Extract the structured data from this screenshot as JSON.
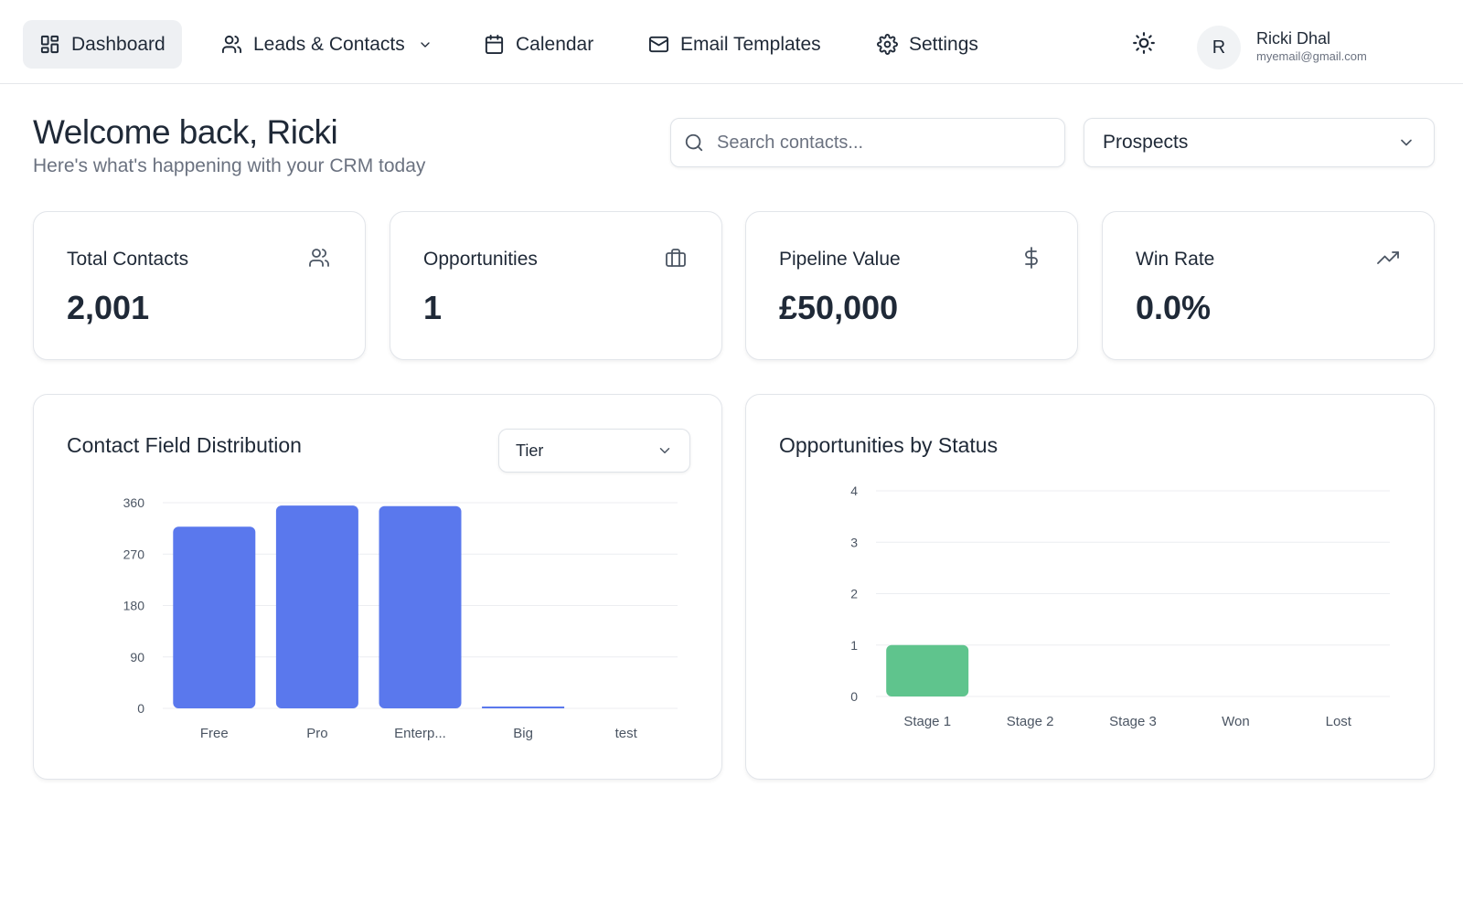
{
  "nav": {
    "items": [
      {
        "label": "Dashboard",
        "icon": "dashboard-icon",
        "active": true
      },
      {
        "label": "Leads & Contacts",
        "icon": "users-icon",
        "dropdown": true
      },
      {
        "label": "Calendar",
        "icon": "calendar-icon"
      },
      {
        "label": "Email Templates",
        "icon": "mail-icon"
      },
      {
        "label": "Settings",
        "icon": "gear-icon"
      }
    ],
    "theme_icon": "sun-icon",
    "user": {
      "initial": "R",
      "name": "Ricki Dhal",
      "email": "myemail@gmail.com"
    }
  },
  "header": {
    "title": "Welcome back, Ricki",
    "subtitle": "Here's what's happening with your CRM today",
    "search_placeholder": "Search contacts...",
    "filter_value": "Prospects"
  },
  "stats": [
    {
      "label": "Total Contacts",
      "value": "2,001",
      "icon": "users-icon"
    },
    {
      "label": "Opportunities",
      "value": "1",
      "icon": "briefcase-icon"
    },
    {
      "label": "Pipeline Value",
      "value": "£50,000",
      "icon": "dollar-icon"
    },
    {
      "label": "Win Rate",
      "value": "0.0%",
      "icon": "trending-up-icon"
    }
  ],
  "colors": {
    "bar_blue": "#5a78ed",
    "bar_green": "#5fc48d",
    "text": "#1f2937",
    "muted": "#6b7280"
  },
  "chart_data": [
    {
      "type": "bar",
      "title": "Contact Field Distribution",
      "field_select": "Tier",
      "categories": [
        "Free",
        "Pro",
        "Enterp...",
        "Big",
        "test"
      ],
      "values": [
        318,
        355,
        354,
        1,
        0
      ],
      "yticks": [
        0,
        90,
        180,
        270,
        360
      ],
      "ylim": [
        0,
        360
      ],
      "grid": true,
      "color": "#5a78ed"
    },
    {
      "type": "bar",
      "title": "Opportunities by Status",
      "categories": [
        "Stage 1",
        "Stage 2",
        "Stage 3",
        "Won",
        "Lost"
      ],
      "values": [
        1,
        0,
        0,
        0,
        0
      ],
      "yticks": [
        0,
        1,
        2,
        3,
        4
      ],
      "ylim": [
        0,
        4
      ],
      "grid": true,
      "color": "#5fc48d"
    }
  ]
}
